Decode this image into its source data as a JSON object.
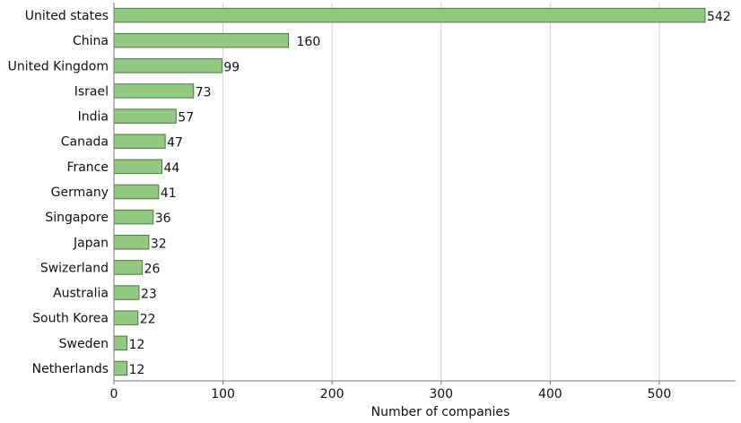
{
  "chart_data": {
    "type": "bar",
    "orientation": "horizontal",
    "categories": [
      "United states",
      "China",
      "United Kingdom",
      "Israel",
      "India",
      "Canada",
      "France",
      "Germany",
      "Singapore",
      "Japan",
      "Swizerland",
      "Australia",
      "South Korea",
      "Sweden",
      "Netherlands"
    ],
    "values": [
      542,
      160,
      99,
      73,
      57,
      47,
      44,
      41,
      36,
      32,
      26,
      23,
      22,
      12,
      12
    ],
    "xlabel": "Number of companies",
    "ylabel": "",
    "xlim": [
      0,
      570
    ],
    "xticks": [
      0,
      100,
      200,
      300,
      400,
      500
    ],
    "grid": true,
    "colors": {
      "bar_fill": "#92c882",
      "bar_stroke": "#4a7a3e",
      "grid": "#d0d0d0",
      "axis": "#777777"
    }
  }
}
